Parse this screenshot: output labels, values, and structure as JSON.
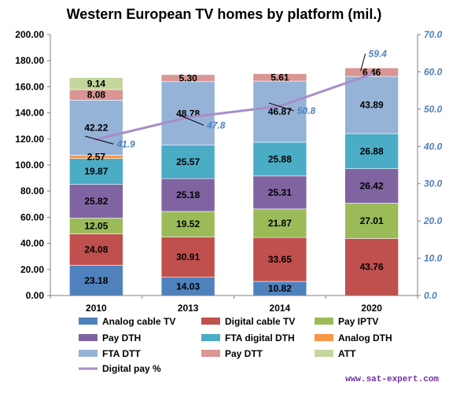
{
  "chart_data": {
    "type": "bar",
    "stacked": true,
    "title": "Western European TV homes by platform (mil.)",
    "categories": [
      "2010",
      "2013",
      "2014",
      "2020"
    ],
    "ylim": [
      0,
      200
    ],
    "y_ticks": [
      "0.00",
      "20.00",
      "40.00",
      "60.00",
      "80.00",
      "100.00",
      "120.00",
      "140.00",
      "160.00",
      "180.00",
      "200.00"
    ],
    "y2lim": [
      0,
      70
    ],
    "y2_ticks": [
      "0.0",
      "10.0",
      "20.0",
      "30.0",
      "40.0",
      "50.0",
      "60.0",
      "70.0"
    ],
    "series": [
      {
        "name": "Analog cable TV",
        "color": "#4f81bd",
        "values": [
          23.18,
          14.03,
          10.82,
          0
        ],
        "labels": [
          "23.18",
          "14.03",
          "10.82",
          ""
        ]
      },
      {
        "name": "Digital cable TV",
        "color": "#c0504d",
        "values": [
          24.08,
          30.91,
          33.65,
          43.76
        ],
        "labels": [
          "24.08",
          "30.91",
          "33.65",
          "43.76"
        ]
      },
      {
        "name": "Pay IPTV",
        "color": "#9bbb59",
        "values": [
          12.05,
          19.52,
          21.87,
          27.01
        ],
        "labels": [
          "12.05",
          "19.52",
          "21.87",
          "27.01"
        ]
      },
      {
        "name": "Pay DTH",
        "color": "#8064a2",
        "values": [
          25.82,
          25.18,
          25.31,
          26.42
        ],
        "labels": [
          "25.82",
          "25.18",
          "25.31",
          "26.42"
        ]
      },
      {
        "name": "FTA digital DTH",
        "color": "#4bacc6",
        "values": [
          19.87,
          25.57,
          25.88,
          26.88
        ],
        "labels": [
          "19.87",
          "25.57",
          "25.88",
          "26.88"
        ]
      },
      {
        "name": "Analog DTH",
        "color": "#f79646",
        "values": [
          2.57,
          0,
          0,
          0
        ],
        "labels": [
          "2.57",
          "",
          "",
          ""
        ]
      },
      {
        "name": "FTA DTT",
        "color": "#95b3d7",
        "values": [
          42.22,
          48.78,
          46.87,
          43.89
        ],
        "labels": [
          "42.22",
          "48.78",
          "46.87",
          "43.89"
        ]
      },
      {
        "name": "Pay DTT",
        "color": "#d99694",
        "values": [
          8.08,
          5.3,
          5.61,
          6.46
        ],
        "labels": [
          "8.08",
          "5.30",
          "5.61",
          "6.46"
        ]
      },
      {
        "name": "ATT",
        "color": "#c3d69b",
        "values": [
          9.14,
          0,
          0,
          0
        ],
        "labels": [
          "9.14",
          "",
          "",
          ""
        ]
      }
    ],
    "line": {
      "name": "Digital pay %",
      "color": "#a88cc8",
      "axis": "secondary",
      "values": [
        41.9,
        47.8,
        50.8,
        59.4
      ],
      "labels": [
        "41.9",
        "47.8",
        "50.8",
        "59.4"
      ]
    },
    "legend_position": "bottom",
    "grid": false
  },
  "watermark": "www.sat-expert.com"
}
